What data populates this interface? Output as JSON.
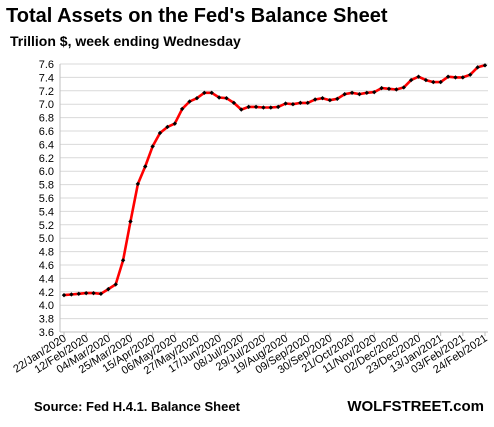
{
  "header": {
    "title": "Total Assets on the Fed's Balance Sheet",
    "subtitle": "Trillion $, week ending Wednesday"
  },
  "footer": {
    "source": "Source: Fed H.4.1. Balance Sheet",
    "brand": "WOLFSTREET.com"
  },
  "chart_data": {
    "type": "line",
    "title": "Total Assets on the Fed's Balance Sheet",
    "subtitle": "Trillion $, week ending Wednesday",
    "xlabel": "",
    "ylabel": "",
    "ylim": [
      3.6,
      7.6
    ],
    "yticks": [
      3.6,
      3.8,
      4.0,
      4.2,
      4.4,
      4.6,
      4.8,
      5.0,
      5.2,
      5.4,
      5.6,
      5.8,
      6.0,
      6.2,
      6.4,
      6.6,
      6.8,
      7.0,
      7.2,
      7.4,
      7.6
    ],
    "xtick_labels": [
      "22/Jan/2020",
      "12/Feb/2020",
      "04/Mar/2020",
      "25/Mar/2020",
      "15/Apr/2020",
      "06/May/2020",
      "27/May/2020",
      "17/Jun/2020",
      "08/Jul/2020",
      "29/Jul/2020",
      "19/Aug/2020",
      "09/Sep/2020",
      "30/Sep/2020",
      "21/Oct/2020",
      "11/Nov/2020",
      "02/Dec/2020",
      "23/Dec/2020",
      "13/Jan/2021",
      "03/Feb/2021",
      "24/Feb/2021"
    ],
    "grid": true,
    "legend": "none",
    "line_color": "#ff0000",
    "marker_color": "#000000",
    "series": [
      {
        "values": [
          4.15,
          4.16,
          4.17,
          4.18,
          4.18,
          4.17,
          4.24,
          4.31,
          4.67,
          5.25,
          5.81,
          6.07,
          6.37,
          6.57,
          6.66,
          6.71,
          6.93,
          7.04,
          7.09,
          7.17,
          7.17,
          7.1,
          7.09,
          7.02,
          6.92,
          6.96,
          6.96,
          6.95,
          6.95,
          6.96,
          7.01,
          7.0,
          7.02,
          7.02,
          7.07,
          7.09,
          7.06,
          7.08,
          7.15,
          7.17,
          7.15,
          7.17,
          7.18,
          7.24,
          7.23,
          7.22,
          7.25,
          7.36,
          7.41,
          7.36,
          7.33,
          7.33,
          7.41,
          7.4,
          7.4,
          7.44,
          7.55,
          7.58
        ]
      }
    ]
  }
}
